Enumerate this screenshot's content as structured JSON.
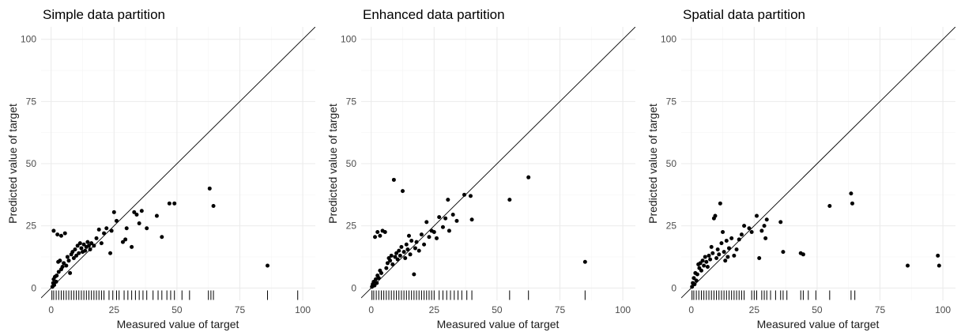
{
  "colors": {
    "points": "#000000",
    "identity_line": "#000000",
    "grid": "#ebebeb",
    "background": "#ffffff"
  },
  "chart_data": [
    {
      "type": "scatter",
      "title": "Simple data partition",
      "xlabel": "Measured value of target",
      "ylabel": "Predicted value of target",
      "xlim": [
        -4,
        105
      ],
      "ylim": [
        -5,
        105
      ],
      "x_ticks": [
        0,
        25,
        50,
        75,
        100
      ],
      "y_ticks": [
        0,
        25,
        50,
        75,
        100
      ],
      "grid": true,
      "identity_line": true,
      "rug": "bottom",
      "points": [
        [
          0.5,
          0.5
        ],
        [
          0.8,
          2.0
        ],
        [
          1.0,
          3.5
        ],
        [
          1.2,
          1.2
        ],
        [
          1.5,
          4.5
        ],
        [
          2.0,
          2.5
        ],
        [
          2.2,
          5.0
        ],
        [
          1.0,
          23.0
        ],
        [
          2.5,
          21.5
        ],
        [
          3.0,
          6.5
        ],
        [
          2.8,
          10.5
        ],
        [
          3.5,
          11.0
        ],
        [
          4.0,
          7.5
        ],
        [
          4.5,
          8.5
        ],
        [
          5.0,
          10.0
        ],
        [
          5.5,
          22.0
        ],
        [
          4.0,
          21.0
        ],
        [
          6.0,
          9.0
        ],
        [
          6.5,
          12.5
        ],
        [
          7.0,
          11.0
        ],
        [
          7.5,
          6.0
        ],
        [
          8.0,
          13.5
        ],
        [
          8.5,
          14.5
        ],
        [
          9.0,
          12.0
        ],
        [
          9.5,
          15.5
        ],
        [
          10.0,
          13.0
        ],
        [
          10.5,
          17.0
        ],
        [
          11.0,
          14.0
        ],
        [
          11.5,
          18.0
        ],
        [
          12.0,
          16.0
        ],
        [
          12.5,
          14.5
        ],
        [
          13.0,
          17.5
        ],
        [
          13.5,
          15.0
        ],
        [
          14.0,
          16.5
        ],
        [
          14.5,
          18.5
        ],
        [
          15.0,
          17.0
        ],
        [
          15.5,
          15.5
        ],
        [
          16.0,
          18.0
        ],
        [
          17.0,
          17.0
        ],
        [
          18.0,
          20.0
        ],
        [
          19.0,
          23.5
        ],
        [
          20.0,
          18.0
        ],
        [
          21.0,
          22.0
        ],
        [
          22.0,
          24.0
        ],
        [
          23.5,
          14.0
        ],
        [
          24.0,
          23.0
        ],
        [
          25.0,
          30.5
        ],
        [
          26.0,
          27.0
        ],
        [
          28.5,
          18.5
        ],
        [
          29.5,
          19.5
        ],
        [
          30.0,
          24.0
        ],
        [
          32.0,
          16.5
        ],
        [
          33.0,
          30.5
        ],
        [
          34.0,
          29.5
        ],
        [
          35.0,
          26.0
        ],
        [
          36.0,
          31.0
        ],
        [
          38.0,
          24.0
        ],
        [
          42.0,
          29.0
        ],
        [
          44.0,
          20.5
        ],
        [
          47.0,
          34.0
        ],
        [
          49.0,
          34.0
        ],
        [
          63.0,
          40.0
        ],
        [
          64.5,
          33.0
        ],
        [
          86.0,
          9.0
        ]
      ],
      "rug_x": [
        0.3,
        1.0,
        2.0,
        3.0,
        4.0,
        5.0,
        6.0,
        7.0,
        8.0,
        9.0,
        10.0,
        11.0,
        12.0,
        13.0,
        14.0,
        15.0,
        16.0,
        17.0,
        18.0,
        19.0,
        20.0,
        21.0,
        23.0,
        24.5,
        26.0,
        27.0,
        29.0,
        30.5,
        32.0,
        33.5,
        35.0,
        36.5,
        38.0,
        40.5,
        42.5,
        44.0,
        46.0,
        47.5,
        49.0,
        52.0,
        55.0,
        62.5,
        63.5,
        64.5,
        86.0,
        98.0
      ]
    },
    {
      "type": "scatter",
      "title": "Enhanced data partition",
      "xlabel": "Measured value of target",
      "ylabel": "Predicted value of target",
      "xlim": [
        -4,
        105
      ],
      "ylim": [
        -5,
        105
      ],
      "x_ticks": [
        0,
        25,
        50,
        75,
        100
      ],
      "y_ticks": [
        0,
        25,
        50,
        75,
        100
      ],
      "grid": true,
      "identity_line": true,
      "rug": "bottom",
      "points": [
        [
          0.3,
          0.5
        ],
        [
          0.6,
          1.5
        ],
        [
          1.0,
          2.5
        ],
        [
          1.3,
          1.0
        ],
        [
          1.8,
          3.5
        ],
        [
          2.2,
          2.0
        ],
        [
          2.5,
          5.0
        ],
        [
          3.0,
          4.0
        ],
        [
          3.5,
          7.0
        ],
        [
          4.0,
          6.0
        ],
        [
          1.5,
          20.5
        ],
        [
          2.5,
          22.5
        ],
        [
          3.5,
          21.0
        ],
        [
          4.5,
          23.0
        ],
        [
          5.5,
          22.5
        ],
        [
          6.0,
          8.0
        ],
        [
          6.5,
          10.0
        ],
        [
          7.0,
          12.0
        ],
        [
          7.5,
          11.0
        ],
        [
          8.0,
          13.0
        ],
        [
          8.5,
          9.5
        ],
        [
          9.0,
          43.5
        ],
        [
          9.5,
          12.5
        ],
        [
          10.0,
          14.0
        ],
        [
          10.5,
          11.5
        ],
        [
          11.0,
          15.0
        ],
        [
          11.5,
          13.0
        ],
        [
          12.0,
          16.5
        ],
        [
          12.5,
          39.0
        ],
        [
          13.0,
          14.5
        ],
        [
          13.5,
          12.0
        ],
        [
          14.0,
          17.5
        ],
        [
          14.5,
          15.5
        ],
        [
          15.0,
          21.0
        ],
        [
          15.5,
          13.5
        ],
        [
          16.0,
          19.0
        ],
        [
          17.0,
          5.5
        ],
        [
          17.5,
          16.0
        ],
        [
          18.0,
          18.5
        ],
        [
          19.0,
          15.0
        ],
        [
          20.0,
          21.5
        ],
        [
          21.0,
          17.5
        ],
        [
          22.0,
          26.5
        ],
        [
          23.0,
          20.5
        ],
        [
          24.0,
          23.0
        ],
        [
          25.0,
          22.5
        ],
        [
          26.0,
          20.0
        ],
        [
          27.0,
          28.5
        ],
        [
          28.5,
          24.5
        ],
        [
          29.5,
          28.0
        ],
        [
          30.5,
          35.5
        ],
        [
          31.0,
          23.0
        ],
        [
          32.5,
          29.5
        ],
        [
          34.0,
          27.0
        ],
        [
          37.0,
          37.5
        ],
        [
          39.5,
          37.0
        ],
        [
          40.0,
          27.5
        ],
        [
          55.0,
          35.5
        ],
        [
          62.5,
          44.5
        ],
        [
          85.0,
          10.5
        ]
      ],
      "rug_x": [
        0.3,
        1.0,
        2.0,
        3.0,
        4.0,
        5.0,
        6.0,
        7.0,
        8.0,
        9.0,
        10.0,
        11.0,
        12.0,
        13.0,
        14.0,
        15.0,
        16.0,
        17.0,
        18.0,
        19.0,
        20.0,
        21.0,
        22.0,
        23.0,
        24.0,
        25.0,
        27.0,
        28.5,
        30.0,
        31.5,
        33.0,
        34.5,
        36.0,
        38.0,
        40.0,
        55.0,
        62.5,
        85.0
      ]
    },
    {
      "type": "scatter",
      "title": "Spatial data partition",
      "xlabel": "Measured value of target",
      "ylabel": "Predicted value of target",
      "xlim": [
        -4,
        105
      ],
      "ylim": [
        -5,
        105
      ],
      "x_ticks": [
        0,
        25,
        50,
        75,
        100
      ],
      "y_ticks": [
        0,
        25,
        50,
        75,
        100
      ],
      "grid": true,
      "identity_line": true,
      "rug": "bottom",
      "points": [
        [
          0.3,
          0.5
        ],
        [
          0.6,
          2.0
        ],
        [
          1.0,
          4.0
        ],
        [
          1.3,
          1.5
        ],
        [
          1.6,
          6.0
        ],
        [
          2.0,
          3.0
        ],
        [
          2.4,
          5.5
        ],
        [
          2.8,
          9.5
        ],
        [
          3.2,
          8.0
        ],
        [
          3.6,
          10.0
        ],
        [
          4.0,
          7.0
        ],
        [
          4.5,
          11.0
        ],
        [
          5.0,
          9.0
        ],
        [
          5.5,
          12.5
        ],
        [
          6.0,
          10.5
        ],
        [
          6.5,
          8.5
        ],
        [
          7.0,
          13.0
        ],
        [
          7.5,
          11.5
        ],
        [
          8.0,
          16.5
        ],
        [
          8.5,
          14.0
        ],
        [
          9.0,
          28.0
        ],
        [
          9.5,
          29.0
        ],
        [
          10.0,
          12.0
        ],
        [
          10.5,
          15.5
        ],
        [
          11.0,
          13.5
        ],
        [
          11.5,
          34.0
        ],
        [
          12.0,
          18.0
        ],
        [
          12.5,
          22.5
        ],
        [
          13.0,
          14.5
        ],
        [
          13.5,
          11.0
        ],
        [
          14.0,
          19.0
        ],
        [
          14.5,
          12.5
        ],
        [
          15.0,
          16.0
        ],
        [
          16.0,
          20.0
        ],
        [
          17.0,
          13.0
        ],
        [
          18.0,
          15.5
        ],
        [
          19.0,
          19.5
        ],
        [
          20.0,
          21.5
        ],
        [
          21.0,
          25.0
        ],
        [
          23.0,
          24.0
        ],
        [
          24.0,
          22.5
        ],
        [
          26.0,
          29.0
        ],
        [
          27.0,
          12.0
        ],
        [
          28.0,
          23.0
        ],
        [
          29.0,
          25.0
        ],
        [
          29.5,
          20.0
        ],
        [
          30.0,
          27.5
        ],
        [
          35.5,
          26.5
        ],
        [
          36.5,
          14.5
        ],
        [
          43.5,
          14.0
        ],
        [
          44.5,
          13.5
        ],
        [
          55.0,
          33.0
        ],
        [
          63.5,
          38.0
        ],
        [
          64.0,
          34.0
        ],
        [
          86.0,
          9.0
        ],
        [
          98.0,
          13.0
        ],
        [
          98.5,
          9.0
        ]
      ],
      "rug_x": [
        0.3,
        1.0,
        2.0,
        3.0,
        4.0,
        5.0,
        6.0,
        7.0,
        8.0,
        9.0,
        10.0,
        11.0,
        12.0,
        13.0,
        14.0,
        15.0,
        16.0,
        17.0,
        18.0,
        19.0,
        20.0,
        21.0,
        24.0,
        25.0,
        26.0,
        28.0,
        29.0,
        30.0,
        31.5,
        33.5,
        35.5,
        36.5,
        38.0,
        43.5,
        44.5,
        46.5,
        49.5,
        55.0,
        63.5,
        65.0
      ]
    }
  ]
}
